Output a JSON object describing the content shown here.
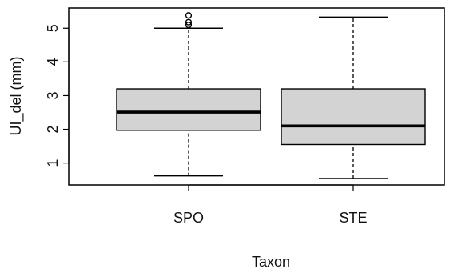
{
  "chart_data": {
    "type": "boxplot",
    "title": "",
    "xlabel": "Taxon",
    "ylabel": "UI_del (mm)",
    "categories": [
      "SPO",
      "STE"
    ],
    "ylim": [
      0.35,
      5.6
    ],
    "y_ticks": [
      1,
      2,
      3,
      4,
      5
    ],
    "y_tick_labels": [
      "1",
      "2",
      "3",
      "4",
      "5"
    ],
    "grid": false,
    "box_fill": "#d3d3d3",
    "line_color": "#000000",
    "boxes": [
      {
        "category": "SPO",
        "whisker_low": 0.62,
        "q1": 1.97,
        "median": 2.51,
        "q3": 3.2,
        "whisker_high": 5.0,
        "outliers": [
          5.1,
          5.18,
          5.38
        ]
      },
      {
        "category": "STE",
        "whisker_low": 0.54,
        "q1": 1.55,
        "median": 2.1,
        "q3": 3.2,
        "whisker_high": 5.33,
        "outliers": []
      }
    ]
  }
}
